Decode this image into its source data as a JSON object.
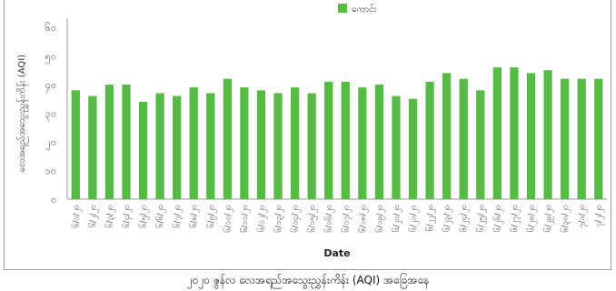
{
  "chart_data": {
    "type": "bar",
    "title": "",
    "legend": {
      "label": "ကောင်း",
      "position": "top-right"
    },
    "xlabel": "Date",
    "ylabel": "လေအရည်အသွေးညွှန်းကိန်း (AQI)",
    "ylim": [
      0,
      60
    ],
    "y_ticks": [
      0,
      10,
      20,
      30,
      40,
      50,
      60
    ],
    "y_tick_labels": [
      "၀",
      "၁၀",
      "၂၀",
      "၃၀",
      "၄၀",
      "၅၀",
      "၆၀"
    ],
    "grid": false,
    "colors": {
      "bar": "#55bb44",
      "axis": "#999999",
      "text": "#555555"
    },
    "categories": [
      "၆/၁/၂၀",
      "၆/၂/၂၀",
      "၆/၃/၂၀",
      "၆/၄/၂၀",
      "၆/၅/၂၀",
      "၆/၆/၂၀",
      "၆/၇/၂၀",
      "၆/၈/၂၀",
      "၆/၉/၂၀",
      "၆/၁၀/၂၀",
      "၆/၁၁/၂၀",
      "၆/၁၂/၂၀",
      "၆/၁၃/၂၀",
      "၆/၁၄/၂၀",
      "၆/၁၅/၂၀",
      "၆/၁၆/၂၀",
      "၆/၁၇/၂၀",
      "၆/၁၈/၂၀",
      "၆/၁၉/၂၀",
      "၆/၂၀/၂၀",
      "၆/၂၁/၂၀",
      "၆/၂၂/၂၀",
      "၆/၂၃/၂၀",
      "၆/၂၄/၂၀",
      "၆/၂၅/၂၀",
      "၆/၂၆/၂၀",
      "၆/၂၇/၂၀",
      "၆/၂၈/၂၀",
      "၆/၂၉/၂၀",
      "၆/၃၀/၂၀",
      "၇/၁/၂၀",
      "၇/၂/၂၀"
    ],
    "series": [
      {
        "name": "ကောင်း",
        "values": [
          38,
          36,
          40,
          40,
          34,
          37,
          36,
          39,
          37,
          42,
          39,
          38,
          37,
          39,
          37,
          41,
          41,
          39,
          40,
          36,
          35,
          41,
          44,
          42,
          38,
          46,
          46,
          44,
          45,
          42,
          42,
          42
        ]
      }
    ]
  },
  "caption": "၂၀၂၀ ဇွန်လ လေအရည်အသွေးညွှန်းကိန်း (AQI) အခြေအနေ"
}
